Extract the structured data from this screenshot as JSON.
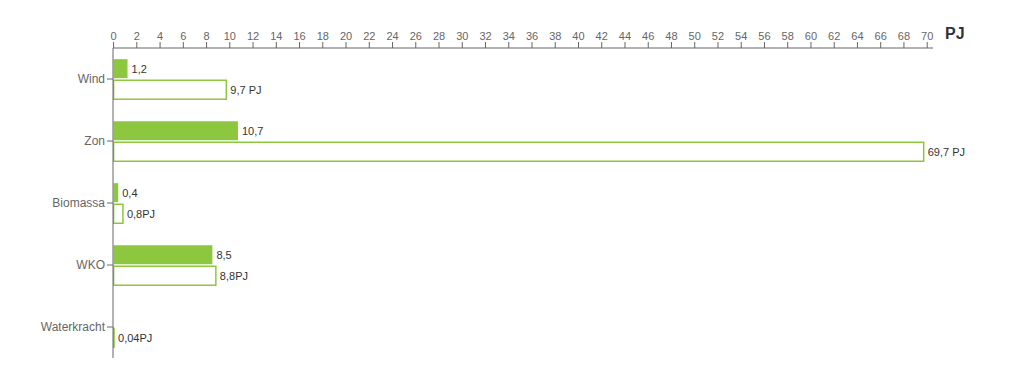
{
  "chart_data": {
    "type": "bar",
    "orientation": "horizontal",
    "categories": [
      "Wind",
      "Zon",
      "Biomassa",
      "WKO",
      "Waterkracht"
    ],
    "series": [
      {
        "color": "#8dc63f",
        "values": [
          1.2,
          10.7,
          0.4,
          8.5,
          0
        ],
        "value_labels": [
          "1,2",
          "10,7",
          "0,4",
          "8,5",
          null
        ]
      },
      {
        "color": "#8dc63f",
        "values": [
          9.7,
          69.7,
          0.8,
          8.8,
          0.04
        ],
        "value_labels": [
          "9,7 PJ",
          "69,7 PJ",
          "0,8PJ",
          "8,8PJ",
          "0,04PJ"
        ]
      }
    ],
    "xlabel": "PJ",
    "xlim": [
      -0.05,
      70.5
    ],
    "xticks": [
      0,
      2,
      4,
      6,
      8,
      10,
      12,
      14,
      16,
      18,
      20,
      22,
      24,
      26,
      28,
      30,
      32,
      34,
      36,
      38,
      40,
      42,
      44,
      46,
      48,
      50,
      52,
      54,
      56,
      58,
      60,
      62,
      64,
      66,
      68,
      70
    ],
    "grid": false,
    "data_labels": true
  }
}
